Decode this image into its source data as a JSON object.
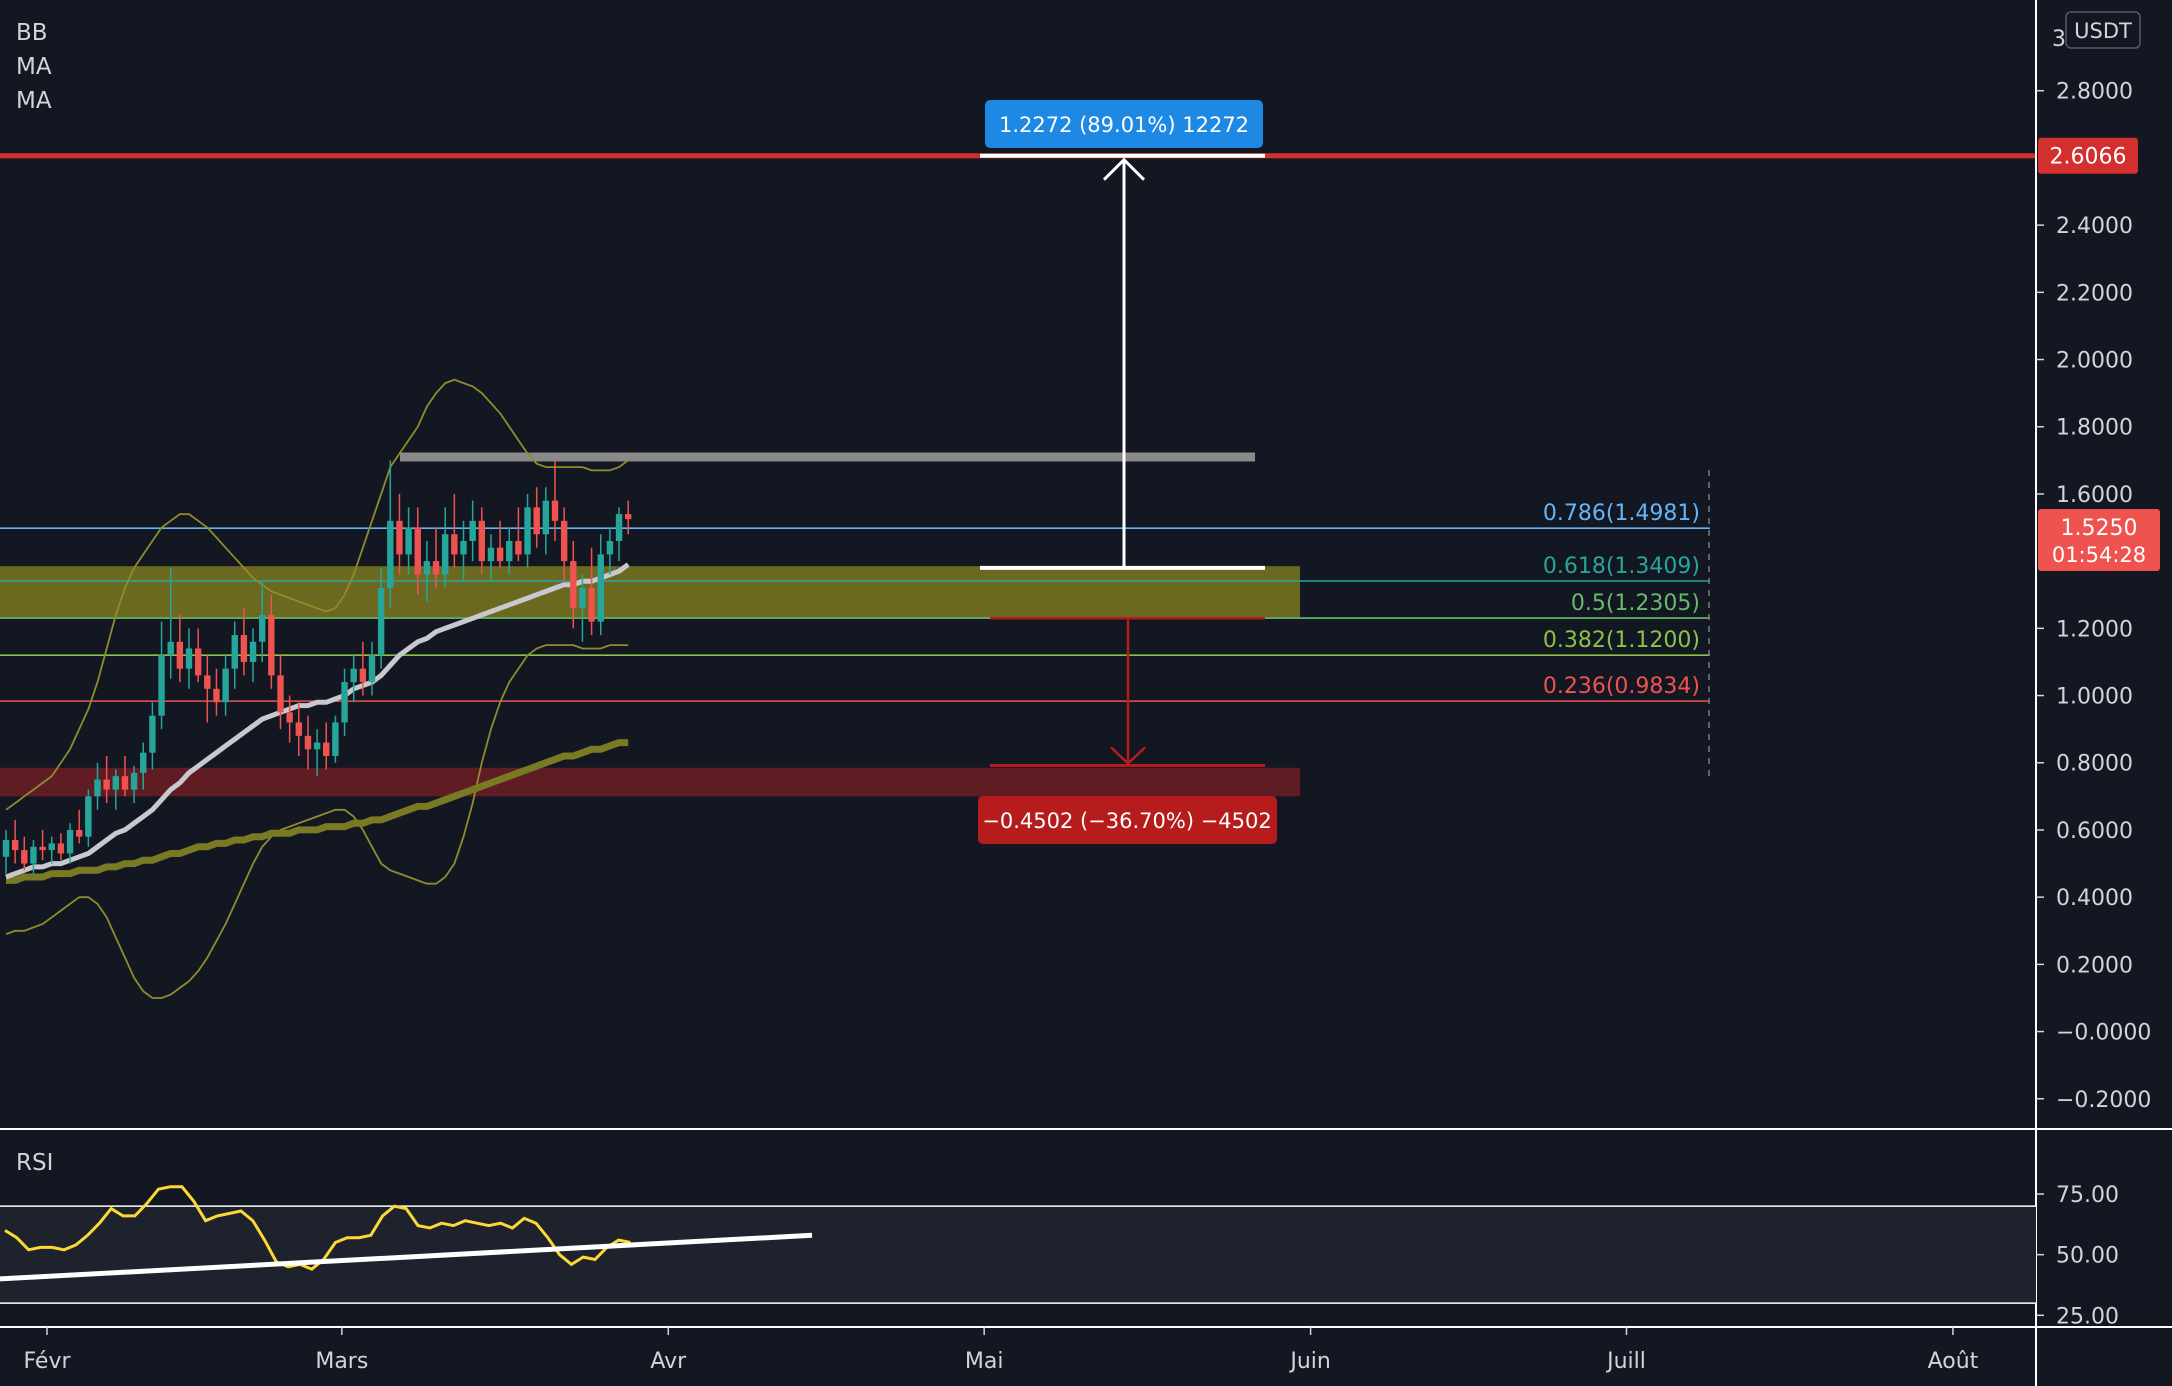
{
  "indicators": {
    "main_labels": [
      "BB",
      "MA",
      "MA"
    ],
    "rsi_label": "RSI"
  },
  "currency": "USDT",
  "colors": {
    "background": "#131722",
    "axis_text": "#d1d4dc",
    "up": "#26a69a",
    "down": "#ef5350",
    "bb_band": "#8f8c2c",
    "ma_fast": "#c8c8d0",
    "ma_slow": "#7a7a24",
    "resistance_red": "#d32f2f",
    "gray_level": "#8a8a8a",
    "measure_up": "#1e88e5",
    "measure_down": "#b71c1c",
    "rsi_line": "#fdd835",
    "yellow_zone": "#8a8420",
    "red_zone": "#7b1f24"
  },
  "chart_data": {
    "type": "candlestick",
    "y_axis": {
      "ticks": [
        "2.8000",
        "2.6066",
        "2.4000",
        "2.2000",
        "2.0000",
        "1.8000",
        "1.6000",
        "1.2000",
        "1.0000",
        "0.8000",
        "0.6000",
        "0.4000",
        "0.2000",
        "−0.0000",
        "−0.2000"
      ],
      "tick_values": [
        2.8,
        2.4,
        2.2,
        2.0,
        1.8,
        1.6,
        1.2,
        1.0,
        0.8,
        0.6,
        0.4,
        0.2,
        0.0,
        -0.2
      ],
      "tick_text": [
        "2.8000",
        "2.4000",
        "2.2000",
        "2.0000",
        "1.8000",
        "1.6000",
        "1.2000",
        "1.0000",
        "0.8000",
        "0.6000",
        "0.4000",
        "0.2000",
        "−0.0000",
        "−0.2000"
      ],
      "range": [
        -0.29,
        3.07
      ],
      "top_partial": "3"
    },
    "x_axis": {
      "labels": [
        "Févr",
        "Mars",
        "Avr",
        "Mai",
        "Juin",
        "Juill",
        "Août"
      ],
      "label_dates": [
        "2021-02-01",
        "2021-03-01",
        "2021-04-01",
        "2021-05-01",
        "2021-06-01",
        "2021-07-01",
        "2021-08-01"
      ]
    },
    "last_price": {
      "value": "1.5250",
      "countdown": "01:54:28"
    },
    "resistance_level": {
      "value": 2.6066,
      "label": "2.6066"
    },
    "gray_level": 1.71,
    "zones": [
      {
        "name": "yellow",
        "from": 1.23,
        "to": 1.385,
        "start": "2021-01-24",
        "end": "2021-05-31"
      },
      {
        "name": "red",
        "from": 0.7,
        "to": 0.785,
        "start": "2021-01-01",
        "end": "2021-05-31"
      }
    ],
    "fibonacci": [
      {
        "ratio": "0.786",
        "value": "1.4981",
        "text": "0.786(1.4981)",
        "level": 1.4981,
        "color": "#64b5f6"
      },
      {
        "ratio": "0.618",
        "value": "1.3409",
        "text": "0.618(1.3409)",
        "level": 1.3409,
        "color": "#26a69a"
      },
      {
        "ratio": "0.5",
        "value": "1.2305",
        "text": "0.5(1.2305)",
        "level": 1.2305,
        "color": "#66bb6a"
      },
      {
        "ratio": "0.382",
        "value": "1.1200",
        "text": "0.382(1.1200)",
        "level": 1.12,
        "color": "#8bc34a"
      },
      {
        "ratio": "0.236",
        "value": "0.9834",
        "text": "0.236(0.9834)",
        "level": 0.9834,
        "color": "#ef5350"
      }
    ],
    "measure_up": {
      "text": "1.2272 (89.01%) 12272",
      "from": 1.38,
      "to": 2.6066
    },
    "measure_down": {
      "text": "−0.4502 (−36.70%) −4502",
      "from": 1.23,
      "to": 0.78
    },
    "candles": [
      {
        "t": 0,
        "o": 0.52,
        "h": 0.6,
        "l": 0.47,
        "c": 0.57
      },
      {
        "t": 1,
        "o": 0.57,
        "h": 0.63,
        "l": 0.5,
        "c": 0.54
      },
      {
        "t": 2,
        "o": 0.54,
        "h": 0.58,
        "l": 0.48,
        "c": 0.5
      },
      {
        "t": 3,
        "o": 0.5,
        "h": 0.57,
        "l": 0.47,
        "c": 0.55
      },
      {
        "t": 4,
        "o": 0.55,
        "h": 0.6,
        "l": 0.51,
        "c": 0.54
      },
      {
        "t": 5,
        "o": 0.54,
        "h": 0.58,
        "l": 0.5,
        "c": 0.56
      },
      {
        "t": 6,
        "o": 0.56,
        "h": 0.59,
        "l": 0.51,
        "c": 0.53
      },
      {
        "t": 7,
        "o": 0.53,
        "h": 0.62,
        "l": 0.5,
        "c": 0.6
      },
      {
        "t": 8,
        "o": 0.6,
        "h": 0.66,
        "l": 0.56,
        "c": 0.58
      },
      {
        "t": 9,
        "o": 0.58,
        "h": 0.72,
        "l": 0.55,
        "c": 0.7
      },
      {
        "t": 10,
        "o": 0.7,
        "h": 0.8,
        "l": 0.66,
        "c": 0.75
      },
      {
        "t": 11,
        "o": 0.75,
        "h": 0.82,
        "l": 0.68,
        "c": 0.72
      },
      {
        "t": 12,
        "o": 0.72,
        "h": 0.78,
        "l": 0.66,
        "c": 0.76
      },
      {
        "t": 13,
        "o": 0.76,
        "h": 0.82,
        "l": 0.7,
        "c": 0.72
      },
      {
        "t": 14,
        "o": 0.72,
        "h": 0.79,
        "l": 0.68,
        "c": 0.77
      },
      {
        "t": 15,
        "o": 0.77,
        "h": 0.86,
        "l": 0.72,
        "c": 0.83
      },
      {
        "t": 16,
        "o": 0.83,
        "h": 0.98,
        "l": 0.78,
        "c": 0.94
      },
      {
        "t": 17,
        "o": 0.94,
        "h": 1.22,
        "l": 0.9,
        "c": 1.12
      },
      {
        "t": 18,
        "o": 1.12,
        "h": 1.38,
        "l": 1.05,
        "c": 1.16
      },
      {
        "t": 19,
        "o": 1.16,
        "h": 1.24,
        "l": 1.04,
        "c": 1.08
      },
      {
        "t": 20,
        "o": 1.08,
        "h": 1.2,
        "l": 1.02,
        "c": 1.14
      },
      {
        "t": 21,
        "o": 1.14,
        "h": 1.2,
        "l": 1.04,
        "c": 1.06
      },
      {
        "t": 22,
        "o": 1.06,
        "h": 1.12,
        "l": 0.92,
        "c": 1.02
      },
      {
        "t": 23,
        "o": 1.02,
        "h": 1.08,
        "l": 0.94,
        "c": 0.98
      },
      {
        "t": 24,
        "o": 0.98,
        "h": 1.12,
        "l": 0.94,
        "c": 1.08
      },
      {
        "t": 25,
        "o": 1.08,
        "h": 1.22,
        "l": 1.02,
        "c": 1.18
      },
      {
        "t": 26,
        "o": 1.18,
        "h": 1.26,
        "l": 1.06,
        "c": 1.1
      },
      {
        "t": 27,
        "o": 1.1,
        "h": 1.2,
        "l": 1.04,
        "c": 1.16
      },
      {
        "t": 28,
        "o": 1.16,
        "h": 1.34,
        "l": 1.1,
        "c": 1.24
      },
      {
        "t": 29,
        "o": 1.24,
        "h": 1.3,
        "l": 1.02,
        "c": 1.06
      },
      {
        "t": 30,
        "o": 1.06,
        "h": 1.12,
        "l": 0.9,
        "c": 0.95
      },
      {
        "t": 31,
        "o": 0.95,
        "h": 1.0,
        "l": 0.86,
        "c": 0.92
      },
      {
        "t": 32,
        "o": 0.92,
        "h": 0.98,
        "l": 0.82,
        "c": 0.88
      },
      {
        "t": 33,
        "o": 0.88,
        "h": 0.94,
        "l": 0.78,
        "c": 0.84
      },
      {
        "t": 34,
        "o": 0.84,
        "h": 0.9,
        "l": 0.76,
        "c": 0.86
      },
      {
        "t": 35,
        "o": 0.86,
        "h": 0.92,
        "l": 0.78,
        "c": 0.82
      },
      {
        "t": 36,
        "o": 0.82,
        "h": 0.94,
        "l": 0.8,
        "c": 0.92
      },
      {
        "t": 37,
        "o": 0.92,
        "h": 1.08,
        "l": 0.88,
        "c": 1.04
      },
      {
        "t": 38,
        "o": 1.04,
        "h": 1.12,
        "l": 0.98,
        "c": 1.08
      },
      {
        "t": 39,
        "o": 1.08,
        "h": 1.16,
        "l": 1.0,
        "c": 1.04
      },
      {
        "t": 40,
        "o": 1.04,
        "h": 1.16,
        "l": 1.0,
        "c": 1.12
      },
      {
        "t": 41,
        "o": 1.12,
        "h": 1.38,
        "l": 1.08,
        "c": 1.32
      },
      {
        "t": 42,
        "o": 1.32,
        "h": 1.7,
        "l": 1.26,
        "c": 1.52
      },
      {
        "t": 43,
        "o": 1.52,
        "h": 1.6,
        "l": 1.36,
        "c": 1.42
      },
      {
        "t": 44,
        "o": 1.42,
        "h": 1.56,
        "l": 1.36,
        "c": 1.5
      },
      {
        "t": 45,
        "o": 1.5,
        "h": 1.56,
        "l": 1.3,
        "c": 1.36
      },
      {
        "t": 46,
        "o": 1.36,
        "h": 1.46,
        "l": 1.28,
        "c": 1.4
      },
      {
        "t": 47,
        "o": 1.4,
        "h": 1.5,
        "l": 1.32,
        "c": 1.36
      },
      {
        "t": 48,
        "o": 1.36,
        "h": 1.56,
        "l": 1.32,
        "c": 1.48
      },
      {
        "t": 49,
        "o": 1.48,
        "h": 1.6,
        "l": 1.38,
        "c": 1.42
      },
      {
        "t": 50,
        "o": 1.42,
        "h": 1.52,
        "l": 1.34,
        "c": 1.46
      },
      {
        "t": 51,
        "o": 1.46,
        "h": 1.58,
        "l": 1.4,
        "c": 1.52
      },
      {
        "t": 52,
        "o": 1.52,
        "h": 1.56,
        "l": 1.36,
        "c": 1.4
      },
      {
        "t": 53,
        "o": 1.4,
        "h": 1.48,
        "l": 1.34,
        "c": 1.44
      },
      {
        "t": 54,
        "o": 1.44,
        "h": 1.52,
        "l": 1.38,
        "c": 1.4
      },
      {
        "t": 55,
        "o": 1.4,
        "h": 1.5,
        "l": 1.36,
        "c": 1.46
      },
      {
        "t": 56,
        "o": 1.46,
        "h": 1.56,
        "l": 1.4,
        "c": 1.42
      },
      {
        "t": 57,
        "o": 1.42,
        "h": 1.6,
        "l": 1.38,
        "c": 1.56
      },
      {
        "t": 58,
        "o": 1.56,
        "h": 1.62,
        "l": 1.44,
        "c": 1.48
      },
      {
        "t": 59,
        "o": 1.48,
        "h": 1.62,
        "l": 1.42,
        "c": 1.58
      },
      {
        "t": 60,
        "o": 1.58,
        "h": 1.7,
        "l": 1.46,
        "c": 1.52
      },
      {
        "t": 61,
        "o": 1.52,
        "h": 1.56,
        "l": 1.34,
        "c": 1.4
      },
      {
        "t": 62,
        "o": 1.4,
        "h": 1.46,
        "l": 1.2,
        "c": 1.26
      },
      {
        "t": 63,
        "o": 1.26,
        "h": 1.36,
        "l": 1.16,
        "c": 1.32
      },
      {
        "t": 64,
        "o": 1.32,
        "h": 1.44,
        "l": 1.18,
        "c": 1.22
      },
      {
        "t": 65,
        "o": 1.22,
        "h": 1.48,
        "l": 1.18,
        "c": 1.42
      },
      {
        "t": 66,
        "o": 1.42,
        "h": 1.5,
        "l": 1.36,
        "c": 1.46
      },
      {
        "t": 67,
        "o": 1.46,
        "h": 1.56,
        "l": 1.4,
        "c": 1.54
      },
      {
        "t": 68,
        "o": 1.54,
        "h": 1.58,
        "l": 1.48,
        "c": 1.525
      }
    ],
    "ma_fast": [
      0.46,
      0.47,
      0.48,
      0.49,
      0.49,
      0.5,
      0.5,
      0.51,
      0.52,
      0.53,
      0.55,
      0.57,
      0.59,
      0.6,
      0.62,
      0.64,
      0.66,
      0.69,
      0.72,
      0.74,
      0.77,
      0.79,
      0.81,
      0.83,
      0.85,
      0.87,
      0.89,
      0.91,
      0.93,
      0.94,
      0.95,
      0.96,
      0.97,
      0.97,
      0.98,
      0.98,
      0.99,
      1.0,
      1.02,
      1.03,
      1.04,
      1.06,
      1.09,
      1.12,
      1.14,
      1.16,
      1.17,
      1.19,
      1.2,
      1.21,
      1.22,
      1.23,
      1.24,
      1.25,
      1.26,
      1.27,
      1.28,
      1.29,
      1.3,
      1.31,
      1.32,
      1.33,
      1.33,
      1.34,
      1.34,
      1.35,
      1.36,
      1.37,
      1.39
    ],
    "ma_slow": [
      0.45,
      0.45,
      0.46,
      0.46,
      0.46,
      0.47,
      0.47,
      0.47,
      0.48,
      0.48,
      0.48,
      0.49,
      0.49,
      0.5,
      0.5,
      0.51,
      0.51,
      0.52,
      0.53,
      0.53,
      0.54,
      0.55,
      0.55,
      0.56,
      0.56,
      0.57,
      0.57,
      0.58,
      0.58,
      0.59,
      0.59,
      0.59,
      0.6,
      0.6,
      0.6,
      0.61,
      0.61,
      0.61,
      0.62,
      0.62,
      0.63,
      0.63,
      0.64,
      0.65,
      0.66,
      0.67,
      0.67,
      0.68,
      0.69,
      0.7,
      0.71,
      0.72,
      0.73,
      0.74,
      0.75,
      0.76,
      0.77,
      0.78,
      0.79,
      0.8,
      0.81,
      0.82,
      0.82,
      0.83,
      0.84,
      0.84,
      0.85,
      0.86,
      0.86
    ],
    "bb_upper": [
      0.66,
      0.68,
      0.7,
      0.72,
      0.74,
      0.76,
      0.8,
      0.84,
      0.9,
      0.96,
      1.04,
      1.14,
      1.24,
      1.32,
      1.38,
      1.42,
      1.46,
      1.5,
      1.52,
      1.54,
      1.54,
      1.52,
      1.5,
      1.47,
      1.44,
      1.41,
      1.38,
      1.35,
      1.33,
      1.31,
      1.3,
      1.29,
      1.28,
      1.27,
      1.26,
      1.25,
      1.26,
      1.3,
      1.36,
      1.44,
      1.52,
      1.6,
      1.68,
      1.72,
      1.76,
      1.8,
      1.86,
      1.9,
      1.93,
      1.94,
      1.93,
      1.92,
      1.9,
      1.87,
      1.84,
      1.8,
      1.76,
      1.72,
      1.69,
      1.68,
      1.68,
      1.68,
      1.68,
      1.68,
      1.67,
      1.67,
      1.67,
      1.68,
      1.7
    ],
    "bb_lower": [
      0.29,
      0.3,
      0.3,
      0.31,
      0.32,
      0.34,
      0.36,
      0.38,
      0.4,
      0.4,
      0.38,
      0.34,
      0.28,
      0.22,
      0.16,
      0.12,
      0.1,
      0.1,
      0.11,
      0.13,
      0.15,
      0.18,
      0.22,
      0.27,
      0.32,
      0.38,
      0.44,
      0.5,
      0.55,
      0.58,
      0.6,
      0.61,
      0.62,
      0.63,
      0.64,
      0.65,
      0.66,
      0.66,
      0.64,
      0.6,
      0.55,
      0.5,
      0.48,
      0.47,
      0.46,
      0.45,
      0.44,
      0.44,
      0.46,
      0.5,
      0.58,
      0.68,
      0.8,
      0.9,
      0.98,
      1.04,
      1.08,
      1.12,
      1.14,
      1.15,
      1.15,
      1.15,
      1.15,
      1.14,
      1.14,
      1.14,
      1.15,
      1.15,
      1.15
    ],
    "rsi": {
      "ticks": [
        "75.00",
        "50.00",
        "25.00"
      ],
      "tick_values": [
        75,
        50,
        25
      ],
      "band": [
        30,
        70
      ],
      "range": [
        21,
        101
      ],
      "values": [
        60,
        57,
        52,
        53,
        53,
        52,
        54,
        58,
        63,
        69,
        66,
        66,
        71,
        77,
        78,
        78,
        72,
        64,
        66,
        67,
        68,
        64,
        56,
        47,
        45,
        46,
        44,
        48,
        55,
        57,
        57,
        58,
        66,
        70,
        69,
        62,
        61,
        63,
        62,
        64,
        63,
        62,
        63,
        61,
        65,
        63,
        57,
        50,
        46,
        49,
        48,
        53,
        56,
        55
      ]
    },
    "rsi_trendline": {
      "from": 40,
      "to": 58
    }
  }
}
